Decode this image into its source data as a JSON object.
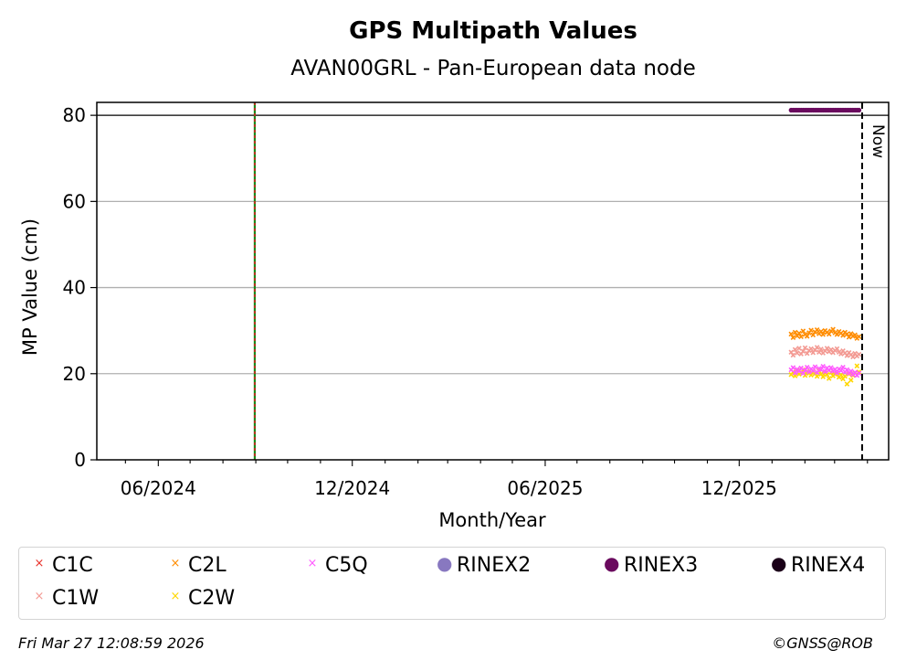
{
  "chart_data": {
    "type": "scatter",
    "title": "GPS Multipath Values",
    "subtitle": "AVAN00GRL - Pan-European data node",
    "xlabel": "Month/Year",
    "ylabel": "MP Value (cm)",
    "x_ticks": [
      "06/2024",
      "12/2024",
      "06/2025",
      "12/2025"
    ],
    "y_ticks": [
      0,
      20,
      40,
      60,
      80
    ],
    "ylim": [
      0,
      83
    ],
    "xlim": [
      "2024-04-04",
      "2026-04-21"
    ],
    "grid": "y-major",
    "hline": 80,
    "event_vline_date": "2024-08-31",
    "now_label": "Now",
    "now_date": "2026-03-27",
    "series": [
      {
        "name": "C1C",
        "color": "#e8322b",
        "marker": "x",
        "start": "2026-01-19",
        "end": "2026-03-24",
        "values": []
      },
      {
        "name": "C1W",
        "color": "#f39a93",
        "marker": "x",
        "start": "2026-01-19",
        "end": "2026-03-24",
        "values": [
          25.0,
          24.3,
          25.6,
          24.8,
          25.9,
          24.6,
          25.2,
          26.0,
          24.7,
          25.4,
          25.8,
          24.9,
          25.5,
          26.1,
          25.0,
          25.7,
          24.8,
          25.3,
          25.9,
          25.1,
          25.6,
          24.9,
          25.4,
          25.8,
          25.0,
          24.6,
          25.3,
          24.8,
          24.2,
          24.9,
          24.4,
          23.9,
          24.7,
          24.1,
          24.5
        ]
      },
      {
        "name": "C2L",
        "color": "#ff8c00",
        "marker": "x",
        "start": "2026-01-19",
        "end": "2026-03-24",
        "values": [
          29.2,
          28.4,
          29.6,
          28.8,
          29.4,
          28.6,
          29.9,
          29.1,
          28.7,
          29.5,
          30.1,
          29.0,
          29.7,
          30.2,
          29.3,
          29.8,
          29.1,
          30.0,
          29.6,
          29.2,
          29.9,
          30.3,
          29.5,
          29.1,
          29.8,
          29.4,
          28.9,
          29.6,
          29.2,
          28.5,
          29.3,
          28.7,
          29.0,
          28.2,
          28.6
        ]
      },
      {
        "name": "C2W",
        "color": "#ffd700",
        "marker": "x",
        "start": "2026-01-19",
        "end": "2026-03-24",
        "values": [
          19.8,
          20.4,
          19.5,
          20.8,
          19.9,
          20.3,
          20.9,
          19.6,
          20.5,
          20.1,
          19.7,
          20.6,
          20.0,
          19.4,
          20.7,
          19.9,
          19.3,
          20.2,
          19.8,
          18.9,
          20.3,
          19.5,
          19.9,
          20.1,
          19.2,
          19.7,
          18.8,
          19.4,
          17.6,
          19.9,
          18.5,
          19.6,
          20.2,
          21.8,
          20.4
        ]
      },
      {
        "name": "C5Q",
        "color": "#ff5aff",
        "marker": "x",
        "start": "2026-01-19",
        "end": "2026-03-24",
        "values": [
          20.9,
          21.4,
          20.2,
          21.0,
          20.6,
          21.3,
          20.1,
          20.8,
          21.5,
          20.4,
          21.1,
          20.7,
          21.6,
          20.3,
          21.2,
          20.9,
          21.7,
          20.5,
          21.3,
          20.8,
          21.4,
          20.6,
          21.0,
          20.2,
          21.1,
          20.7,
          21.5,
          20.4,
          20.9,
          20.1,
          20.6,
          19.8,
          20.3,
          19.6,
          20.1
        ]
      },
      {
        "name": "RINEX2",
        "color": "#8878c0",
        "marker": "dot",
        "start": "2026-01-19",
        "end": "2026-03-24",
        "values": []
      },
      {
        "name": "RINEX3",
        "color": "#6a0a5e",
        "marker": "dot",
        "start": "2026-01-19",
        "end": "2026-03-24",
        "values": [
          81.2,
          81.2,
          81.2,
          81.2,
          81.2,
          81.2,
          81.2,
          81.2,
          81.2,
          81.2,
          81.2,
          81.2,
          81.2,
          81.2,
          81.2,
          81.2,
          81.2,
          81.2,
          81.2,
          81.2,
          81.2,
          81.2,
          81.2,
          81.2,
          81.2,
          81.2,
          81.2,
          81.2,
          81.2,
          81.2,
          81.2,
          81.2,
          81.2,
          81.2,
          81.2
        ]
      },
      {
        "name": "RINEX4",
        "color": "#1a0018",
        "marker": "dot",
        "start": "2026-01-19",
        "end": "2026-03-24",
        "values": []
      }
    ]
  },
  "legend": {
    "items": [
      {
        "label": "C1C",
        "symbol": "×",
        "color": "#e8322b",
        "kind": "x"
      },
      {
        "label": "C2L",
        "symbol": "×",
        "color": "#ff8c00",
        "kind": "x"
      },
      {
        "label": "C5Q",
        "symbol": "×",
        "color": "#ff5aff",
        "kind": "x"
      },
      {
        "label": "RINEX2",
        "symbol": "●",
        "color": "#8878c0",
        "kind": "dot"
      },
      {
        "label": "RINEX3",
        "symbol": "●",
        "color": "#6a0a5e",
        "kind": "dot"
      },
      {
        "label": "RINEX4",
        "symbol": "●",
        "color": "#1a0018",
        "kind": "dot"
      },
      {
        "label": "C1W",
        "symbol": "×",
        "color": "#f39a93",
        "kind": "x"
      },
      {
        "label": "C2W",
        "symbol": "×",
        "color": "#ffd700",
        "kind": "x"
      }
    ]
  },
  "footer": {
    "timestamp": "Fri Mar 27 12:08:59 2026",
    "copyright": "©GNSS@ROB"
  }
}
